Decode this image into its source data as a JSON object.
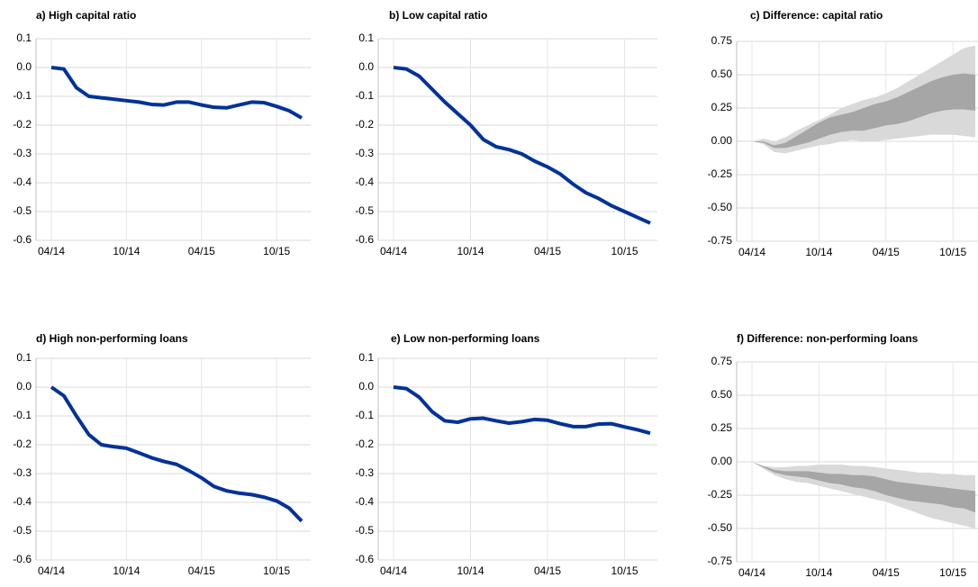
{
  "chart_data": [
    {
      "type": "line",
      "title": "a) High capital ratio",
      "categories": [
        "04/14",
        null,
        null,
        null,
        null,
        null,
        "10/14",
        null,
        null,
        null,
        null,
        null,
        "04/15",
        null,
        null,
        null,
        null,
        null,
        "10/15",
        null,
        null
      ],
      "values": [
        0,
        -0.005,
        -0.07,
        -0.1,
        -0.105,
        -0.11,
        -0.115,
        -0.12,
        -0.128,
        -0.13,
        -0.12,
        -0.12,
        -0.13,
        -0.138,
        -0.14,
        -0.13,
        -0.12,
        -0.122,
        -0.135,
        -0.15,
        -0.175
      ],
      "color": "#003299",
      "ylim": [
        -0.6,
        0.1
      ],
      "yticks": [
        0.1,
        {
          "value": 0,
          "label": "0.0"
        },
        -0.1,
        -0.2,
        -0.3,
        -0.4,
        -0.5,
        -0.6
      ],
      "grid": true
    },
    {
      "type": "line",
      "title": "b) Low capital ratio",
      "categories": [
        "04/14",
        null,
        null,
        null,
        null,
        null,
        "10/14",
        null,
        null,
        null,
        null,
        null,
        "04/15",
        null,
        null,
        null,
        null,
        null,
        "10/15",
        null,
        null
      ],
      "values": [
        0,
        -0.005,
        -0.03,
        -0.075,
        -0.12,
        -0.16,
        -0.2,
        -0.25,
        -0.275,
        -0.285,
        -0.3,
        -0.325,
        -0.345,
        -0.37,
        -0.405,
        -0.435,
        -0.455,
        -0.48,
        -0.5,
        -0.52,
        -0.54
      ],
      "color": "#003299",
      "ylim": [
        -0.6,
        0.1
      ],
      "yticks": [
        0.1,
        {
          "value": 0,
          "label": "0.0"
        },
        -0.1,
        -0.2,
        -0.3,
        -0.4,
        -0.5,
        -0.6
      ],
      "grid": true
    },
    {
      "type": "fan",
      "title": "c) Difference: capital ratio",
      "categories": [
        "04/14",
        null,
        null,
        null,
        null,
        null,
        "10/14",
        null,
        null,
        null,
        null,
        null,
        "04/15",
        null,
        null,
        null,
        null,
        null,
        "10/15",
        null,
        null
      ],
      "bands": [
        {
          "color": "#d9d9d9",
          "lower": [
            0,
            -0.02,
            -0.08,
            -0.09,
            -0.07,
            -0.05,
            -0.03,
            -0.02,
            0,
            0.01,
            0,
            0,
            0.01,
            0.02,
            0.03,
            0.04,
            0.05,
            0.05,
            0.05,
            0.04,
            0.03
          ],
          "upper": [
            0,
            0.02,
            0,
            0.03,
            0.08,
            0.12,
            0.16,
            0.2,
            0.25,
            0.28,
            0.31,
            0.33,
            0.36,
            0.4,
            0.45,
            0.5,
            0.55,
            0.6,
            0.65,
            0.7,
            0.72
          ]
        },
        {
          "color": "#a6a6a6",
          "lower": [
            0,
            -0.01,
            -0.05,
            -0.05,
            -0.03,
            -0.01,
            0.02,
            0.05,
            0.07,
            0.08,
            0.08,
            0.1,
            0.12,
            0.13,
            0.15,
            0.18,
            0.21,
            0.23,
            0.24,
            0.24,
            0.23
          ],
          "upper": [
            0,
            0,
            -0.03,
            -0.01,
            0.04,
            0.09,
            0.14,
            0.18,
            0.2,
            0.22,
            0.25,
            0.28,
            0.3,
            0.33,
            0.37,
            0.41,
            0.45,
            0.48,
            0.5,
            0.51,
            0.5
          ]
        }
      ],
      "ylim": [
        -0.75,
        0.75
      ],
      "yticks": [
        {
          "value": 0.75,
          "label": "0.75"
        },
        {
          "value": 0.5,
          "label": "0.50"
        },
        {
          "value": 0.25,
          "label": "0.25"
        },
        {
          "value": 0,
          "label": "0.00"
        },
        {
          "value": -0.25,
          "label": "-0.25"
        },
        {
          "value": -0.5,
          "label": "-0.50"
        },
        {
          "value": -0.75,
          "label": "-0.75"
        }
      ],
      "grid": true
    },
    {
      "type": "line",
      "title": "d) High non-performing loans",
      "categories": [
        "04/14",
        null,
        null,
        null,
        null,
        null,
        "10/14",
        null,
        null,
        null,
        null,
        null,
        "04/15",
        null,
        null,
        null,
        null,
        null,
        "10/15",
        null,
        null
      ],
      "values": [
        0,
        -0.03,
        -0.1,
        -0.165,
        -0.2,
        -0.207,
        -0.212,
        -0.228,
        -0.245,
        -0.258,
        -0.268,
        -0.29,
        -0.315,
        -0.345,
        -0.36,
        -0.368,
        -0.373,
        -0.382,
        -0.395,
        -0.42,
        -0.465
      ],
      "color": "#003299",
      "ylim": [
        -0.6,
        0.1
      ],
      "yticks": [
        0.1,
        {
          "value": 0,
          "label": "0.0"
        },
        -0.1,
        -0.2,
        -0.3,
        -0.4,
        -0.5,
        -0.6
      ],
      "grid": true
    },
    {
      "type": "line",
      "title": "e) Low non-performing loans",
      "categories": [
        "04/14",
        null,
        null,
        null,
        null,
        null,
        "10/14",
        null,
        null,
        null,
        null,
        null,
        "04/15",
        null,
        null,
        null,
        null,
        null,
        "10/15",
        null,
        null
      ],
      "values": [
        0,
        -0.005,
        -0.035,
        -0.085,
        -0.117,
        -0.122,
        -0.11,
        -0.108,
        -0.117,
        -0.125,
        -0.12,
        -0.112,
        -0.115,
        -0.127,
        -0.137,
        -0.137,
        -0.128,
        -0.127,
        -0.138,
        -0.148,
        -0.16
      ],
      "color": "#003299",
      "ylim": [
        -0.6,
        0.1
      ],
      "yticks": [
        0.1,
        {
          "value": 0,
          "label": "0.0"
        },
        -0.1,
        -0.2,
        -0.3,
        -0.4,
        -0.5,
        -0.6
      ],
      "grid": true
    },
    {
      "type": "fan",
      "title": "f) Difference: non-performing loans",
      "categories": [
        "04/14",
        null,
        null,
        null,
        null,
        null,
        "10/14",
        null,
        null,
        null,
        null,
        null,
        "04/15",
        null,
        null,
        null,
        null,
        null,
        "10/15",
        null,
        null
      ],
      "bands": [
        {
          "color": "#d9d9d9",
          "lower": [
            0,
            -0.05,
            -0.1,
            -0.13,
            -0.15,
            -0.16,
            -0.18,
            -0.2,
            -0.22,
            -0.24,
            -0.26,
            -0.28,
            -0.3,
            -0.33,
            -0.36,
            -0.39,
            -0.42,
            -0.44,
            -0.46,
            -0.48,
            -0.5
          ],
          "upper": [
            0,
            -0.03,
            -0.04,
            -0.04,
            -0.03,
            -0.03,
            -0.02,
            -0.02,
            -0.02,
            -0.03,
            -0.03,
            -0.04,
            -0.05,
            -0.06,
            -0.07,
            -0.08,
            -0.08,
            -0.09,
            -0.09,
            -0.1,
            -0.1
          ]
        },
        {
          "color": "#a6a6a6",
          "lower": [
            0,
            -0.04,
            -0.08,
            -0.1,
            -0.11,
            -0.12,
            -0.14,
            -0.16,
            -0.17,
            -0.19,
            -0.2,
            -0.22,
            -0.25,
            -0.27,
            -0.29,
            -0.3,
            -0.31,
            -0.32,
            -0.34,
            -0.35,
            -0.38
          ],
          "upper": [
            0,
            -0.03,
            -0.06,
            -0.07,
            -0.07,
            -0.07,
            -0.08,
            -0.09,
            -0.09,
            -0.1,
            -0.1,
            -0.11,
            -0.13,
            -0.15,
            -0.16,
            -0.17,
            -0.18,
            -0.19,
            -0.2,
            -0.21,
            -0.22
          ]
        }
      ],
      "ylim": [
        -0.75,
        0.75
      ],
      "yticks": [
        {
          "value": 0.75,
          "label": "0.75"
        },
        {
          "value": 0.5,
          "label": "0.50"
        },
        {
          "value": 0.25,
          "label": "0.25"
        },
        {
          "value": 0,
          "label": "0.00"
        },
        {
          "value": -0.25,
          "label": "-0.25"
        },
        {
          "value": -0.5,
          "label": "-0.50"
        },
        {
          "value": -0.75,
          "label": "-0.75"
        }
      ],
      "grid": true
    }
  ]
}
